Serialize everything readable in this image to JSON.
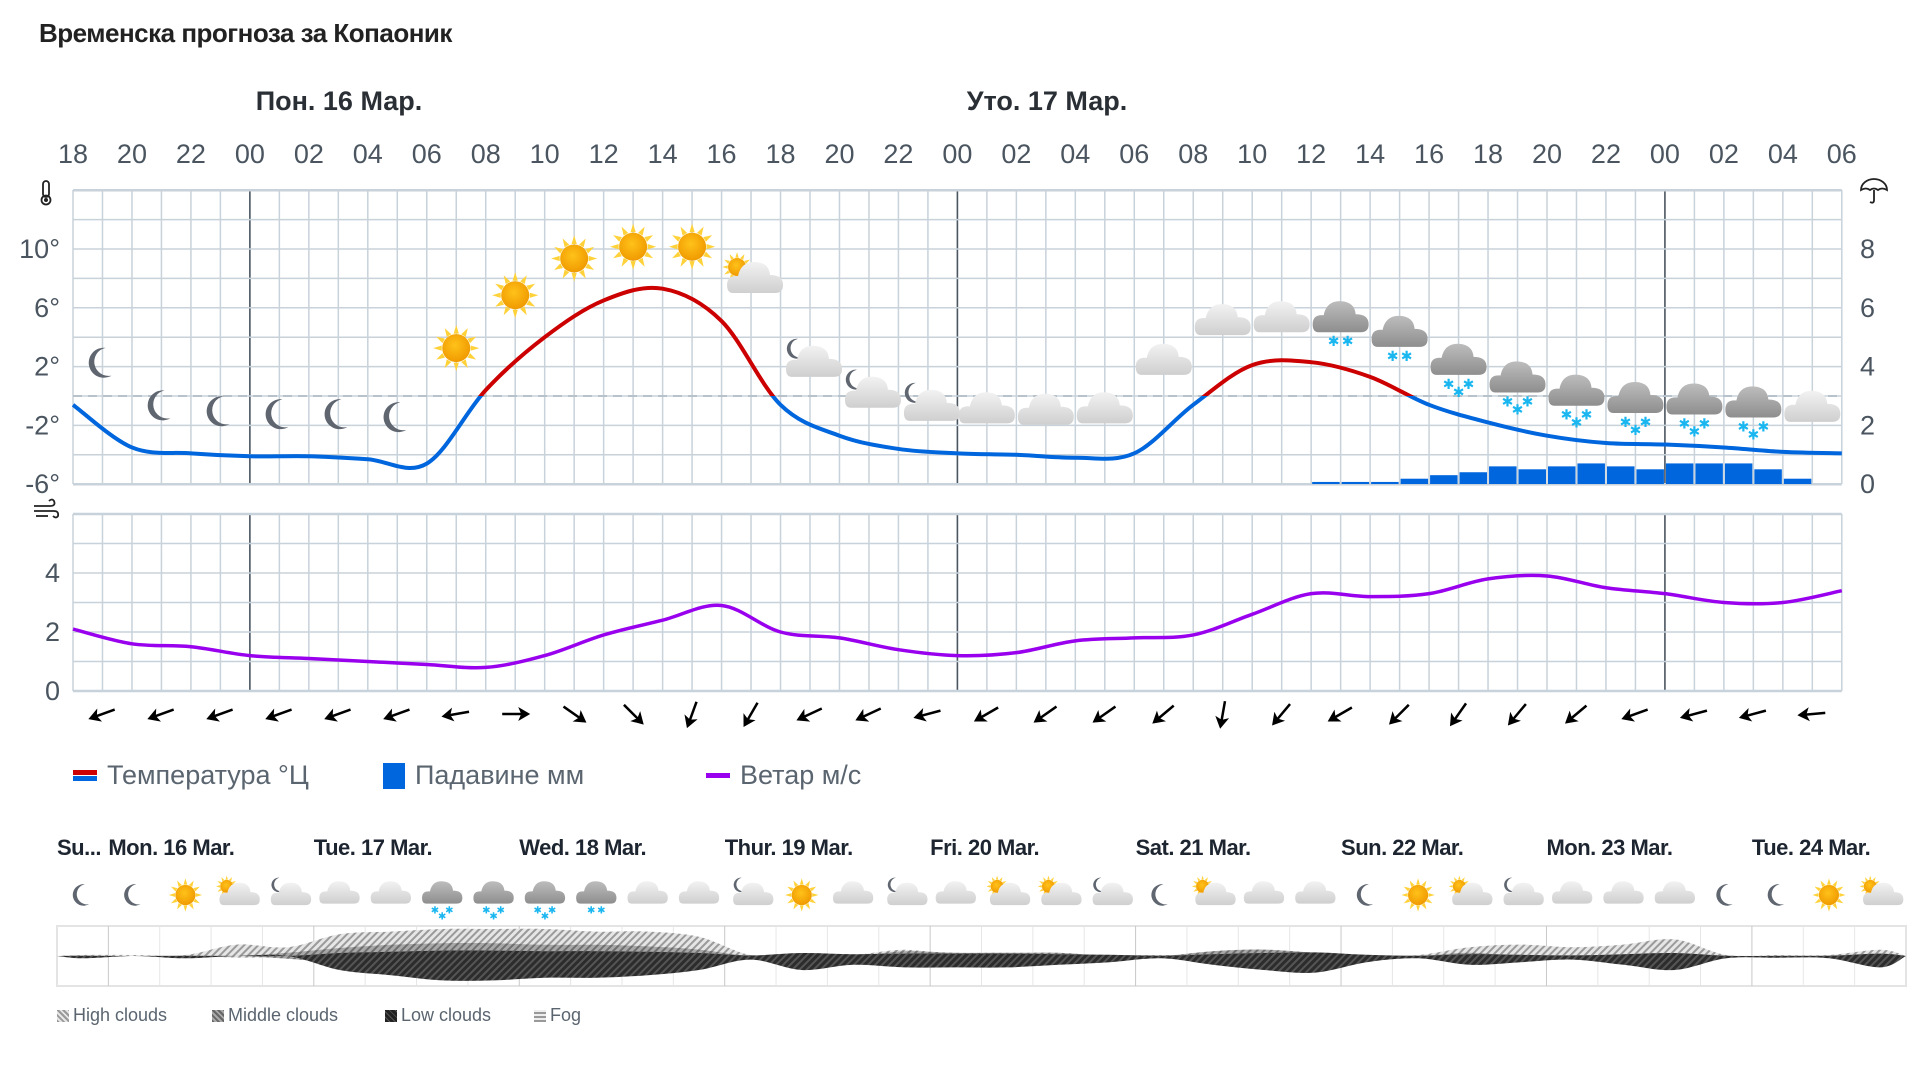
{
  "title": "Временска прогноза за Копаоник",
  "day_headers": [
    "Пон. 16 Мар.",
    "Уто. 17 Мар."
  ],
  "legend": {
    "temperature": "Температура °Ц",
    "precipitation": "Падавине мм",
    "wind": "Ветар м/с"
  },
  "colors": {
    "temp_warm": "#cc0000",
    "temp_cold": "#0066dd",
    "precip": "#0066dd",
    "wind": "#9900ee",
    "grid": "#c8d2da",
    "day_separator": "#4a5560"
  },
  "chart_data": [
    {
      "type": "line",
      "name_printed": "Температура °Ц",
      "x": [
        "18",
        "20",
        "22",
        "00",
        "02",
        "04",
        "06",
        "08",
        "10",
        "12",
        "14",
        "16",
        "18",
        "20",
        "22",
        "00",
        "02",
        "04",
        "06",
        "08",
        "10",
        "12",
        "14",
        "16",
        "18",
        "20",
        "22",
        "00",
        "02",
        "04",
        "06"
      ],
      "y_temperature": [
        -0.6,
        -3.5,
        -3.9,
        -4.1,
        -4.1,
        -4.3,
        -4.6,
        0.4,
        4.0,
        6.5,
        7.3,
        5.1,
        -0.6,
        -2.7,
        -3.6,
        -3.9,
        -4.0,
        -4.2,
        -3.9,
        -0.6,
        2.1,
        2.3,
        1.3,
        -0.6,
        -1.8,
        -2.7,
        -3.2,
        -3.3,
        -3.5,
        -3.8,
        -3.9
      ],
      "y_left_ticks": [
        "10°",
        "6°",
        "2°",
        "-2°",
        "-6°"
      ],
      "y_left_range": [
        -6,
        14
      ],
      "grid": true,
      "zero_line": "dashed"
    },
    {
      "type": "bar",
      "name_printed": "Падавине мм",
      "hourly_from": "Уто. 17 Мар. 12",
      "values": [
        0.07,
        0.07,
        0.07,
        0.18,
        0.3,
        0.4,
        0.6,
        0.5,
        0.6,
        0.7,
        0.6,
        0.5,
        0.7,
        0.7,
        0.7,
        0.5,
        0.18
      ],
      "y_right_ticks": [
        "8",
        "6",
        "4",
        "2",
        "0"
      ],
      "y_right_range": [
        0,
        10
      ]
    },
    {
      "type": "line",
      "name_printed": "Ветар м/с",
      "x": [
        "18",
        "20",
        "22",
        "00",
        "02",
        "04",
        "06",
        "08",
        "10",
        "12",
        "14",
        "16",
        "18",
        "20",
        "22",
        "00",
        "02",
        "04",
        "06",
        "08",
        "10",
        "12",
        "14",
        "16",
        "18",
        "20",
        "22",
        "00",
        "02",
        "04",
        "06"
      ],
      "y_wind": [
        2.1,
        1.6,
        1.5,
        1.2,
        1.1,
        1.0,
        0.9,
        0.8,
        1.2,
        1.9,
        2.4,
        2.9,
        2.0,
        1.8,
        1.4,
        1.2,
        1.3,
        1.7,
        1.8,
        1.9,
        2.6,
        3.3,
        3.2,
        3.3,
        3.8,
        3.9,
        3.5,
        3.3,
        3.0,
        3.0,
        3.4
      ],
      "y_ticks": [
        "4",
        "2",
        "0"
      ],
      "y_range": [
        0,
        6
      ],
      "wind_arrow_direction_deg": [
        160,
        160,
        160,
        160,
        160,
        160,
        170,
        0,
        35,
        45,
        110,
        120,
        155,
        155,
        165,
        150,
        145,
        145,
        140,
        100,
        130,
        150,
        135,
        125,
        130,
        140,
        160,
        165,
        165,
        175
      ]
    }
  ],
  "weather_icons": [
    "moon",
    "moon",
    "moon",
    "moon",
    "moon",
    "moon",
    "sun",
    "sun",
    "sun",
    "sun",
    "sun",
    "sun-cloud",
    "moon-cloud",
    "moon-cloud",
    "moon-cloud",
    "cloud",
    "cloud",
    "cloud",
    "cloud",
    "cloud",
    "cloud",
    "cloud-light-snow",
    "cloud-light-snow",
    "cloud-snow",
    "cloud-snow",
    "cloud-snow",
    "cloud-snow",
    "cloud-snow",
    "cloud-snow",
    "cloud"
  ],
  "overview": {
    "days": [
      "Su...",
      "Mon. 16 Mar.",
      "Tue. 17 Mar.",
      "Wed. 18 Mar.",
      "Thur. 19 Mar.",
      "Fri. 20 Mar.",
      "Sat. 21 Mar.",
      "Sun. 22 Mar.",
      "Mon. 23 Mar.",
      "Tue. 24 Mar."
    ],
    "icons": [
      "moon",
      "moon",
      "sun",
      "sun-cloud",
      "moon-cloud",
      "cloud",
      "cloud",
      "cloud-snow",
      "cloud-snow",
      "cloud-snow",
      "cloud-light-snow",
      "cloud",
      "cloud",
      "moon-cloud",
      "sun",
      "cloud",
      "moon-cloud",
      "cloud",
      "sun-cloud",
      "sun-cloud",
      "moon-cloud",
      "moon",
      "sun-cloud",
      "cloud",
      "cloud",
      "moon",
      "sun",
      "sun-cloud",
      "moon-cloud",
      "cloud",
      "cloud",
      "cloud",
      "moon",
      "moon",
      "sun",
      "sun-cloud"
    ],
    "clouds_high": [
      0,
      0,
      0,
      0.4,
      0.3,
      0.8,
      0.9,
      1,
      1,
      1,
      0.9,
      0.9,
      0.7,
      0,
      0,
      0,
      0.2,
      0,
      0,
      0,
      0,
      0,
      0,
      0,
      0,
      0,
      0,
      0.3,
      0.4,
      0.3,
      0.4,
      0.6,
      0,
      0,
      0,
      0.2
    ],
    "clouds_middle": [
      0,
      0,
      0,
      0,
      0.2,
      0.5,
      0.7,
      0.8,
      0.8,
      0.7,
      0.7,
      0.6,
      0.4,
      0,
      0,
      0,
      0.3,
      0.2,
      0.2,
      0.2,
      0,
      0,
      0.3,
      0.4,
      0.2,
      0,
      0,
      0.2,
      0,
      0,
      0,
      0,
      0,
      0,
      0,
      0
    ],
    "clouds_low": [
      0.05,
      0,
      0.05,
      0,
      0,
      0.5,
      0.7,
      0.9,
      0.9,
      0.8,
      0.8,
      0.7,
      0.5,
      0.1,
      0.5,
      0.3,
      0.4,
      0.4,
      0.4,
      0.3,
      0.2,
      0.05,
      0.3,
      0.5,
      0.6,
      0.2,
      0.05,
      0.3,
      0.2,
      0.1,
      0.3,
      0.5,
      0.05,
      0.03,
      0.05,
      0.4
    ],
    "legend": [
      "High clouds",
      "Middle clouds",
      "Low clouds",
      "Fog"
    ]
  }
}
